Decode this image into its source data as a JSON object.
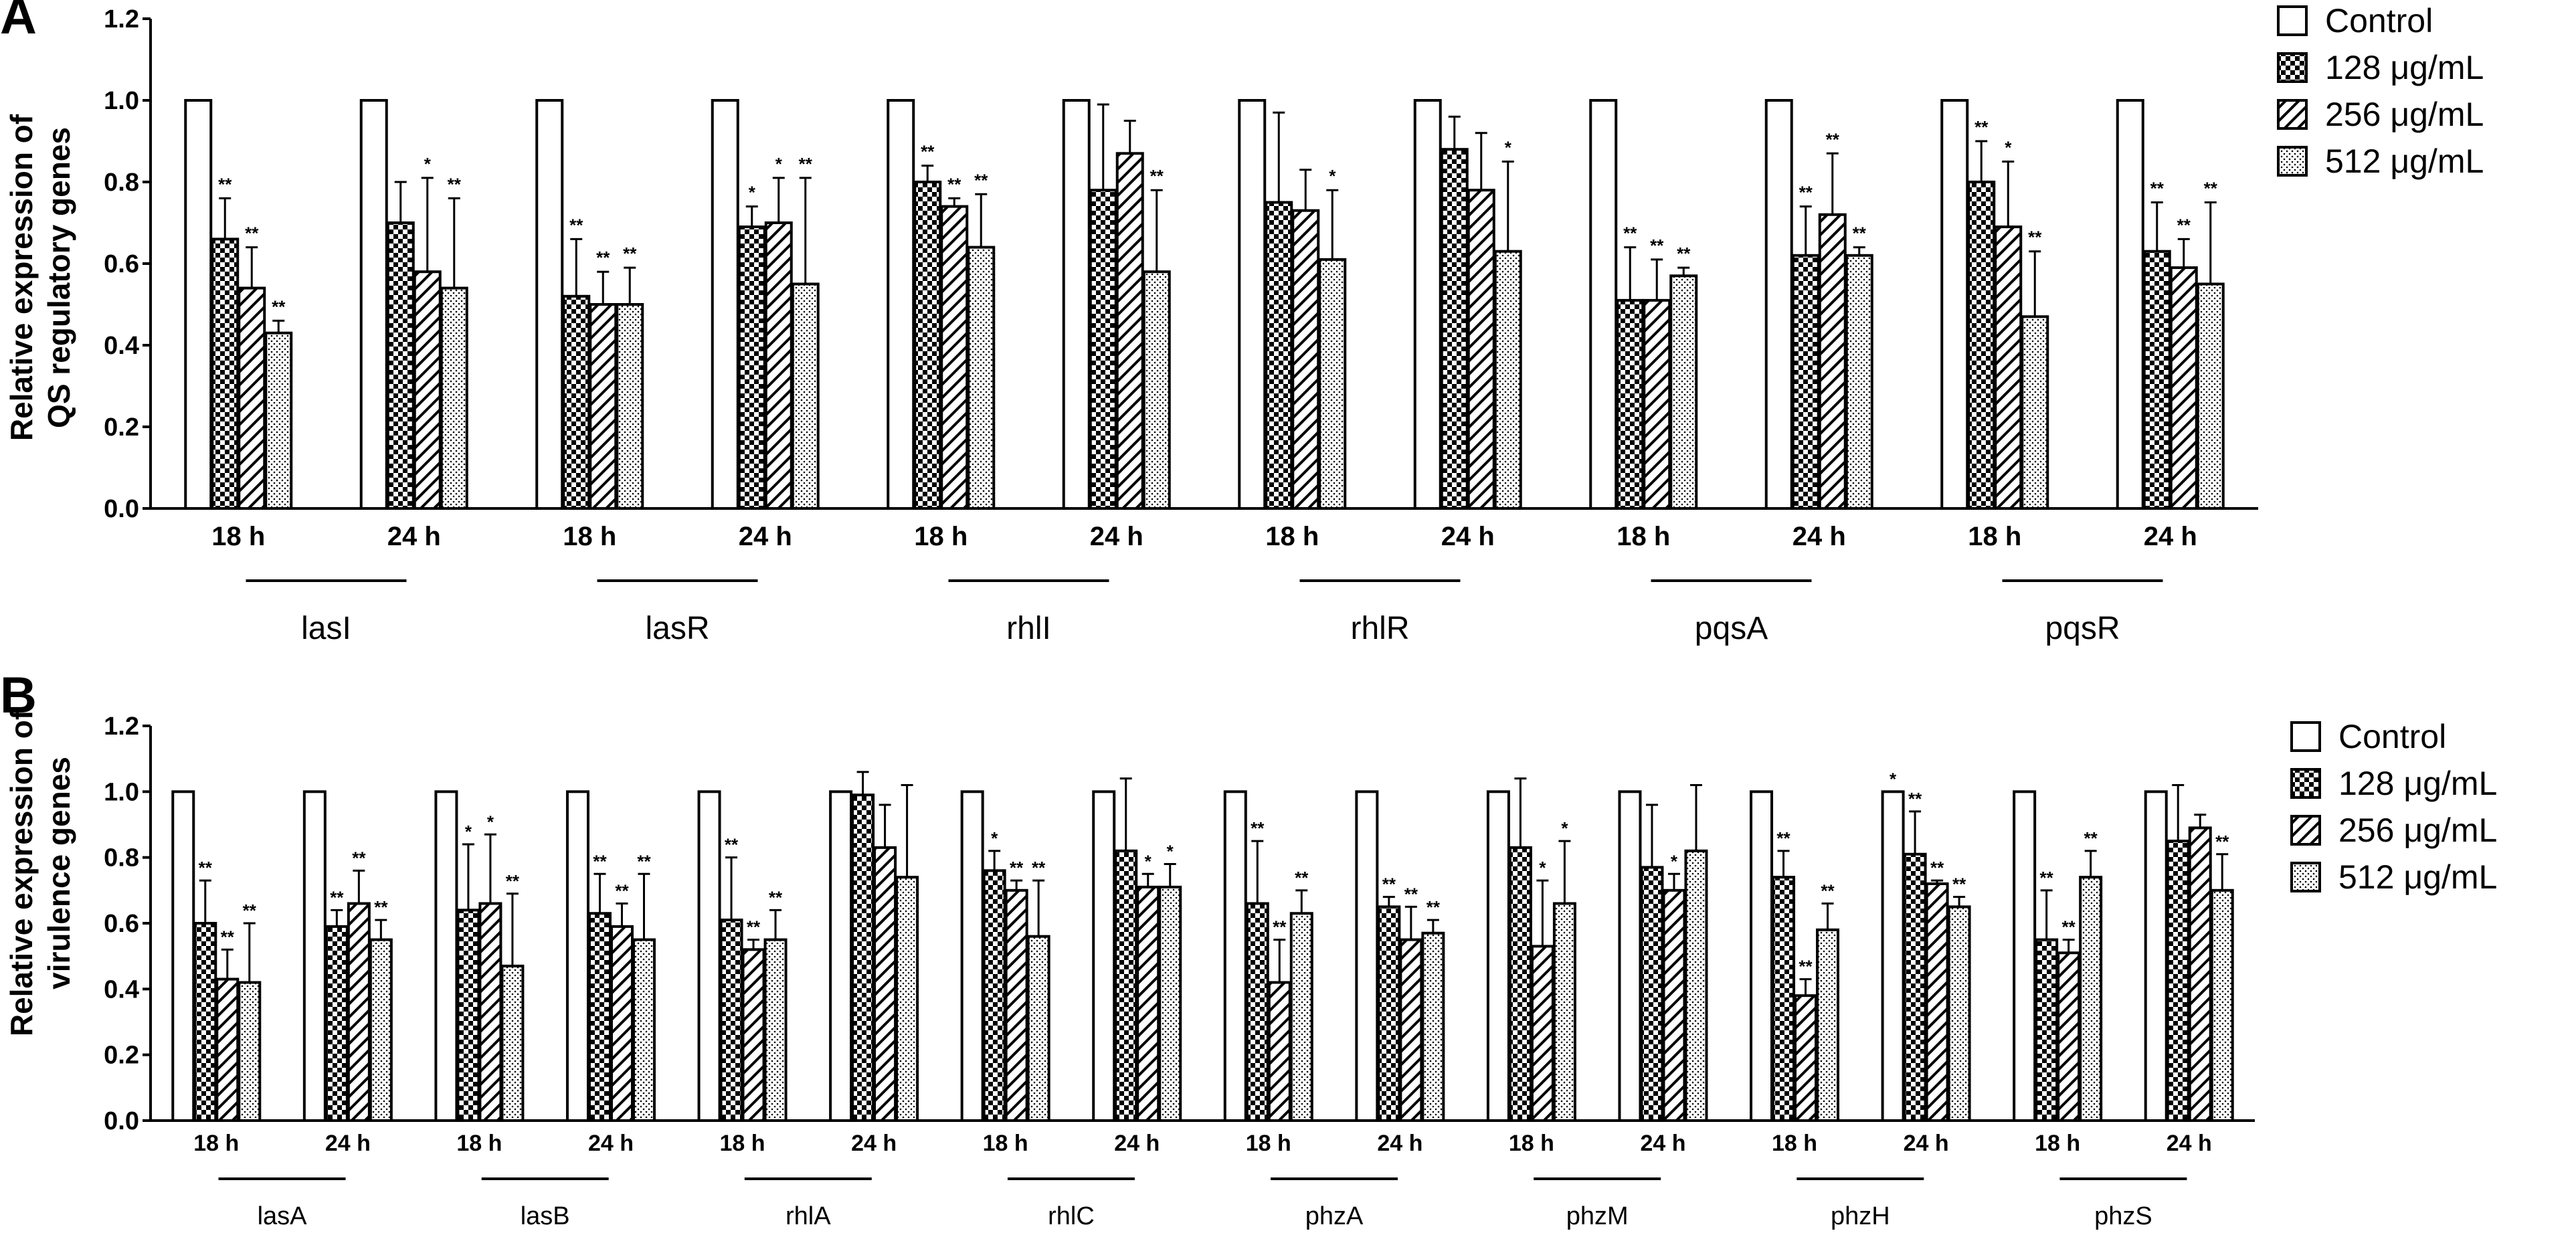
{
  "chart_data": [
    {
      "panel": "A",
      "type": "bar",
      "ylabel": "Relative expression of QS regulatory genes",
      "ylabel_lines": [
        "Relative expression of",
        "QS regulatory genes"
      ],
      "ylim": [
        0,
        1.2
      ],
      "yticks": [
        "0.0",
        "0.2",
        "0.4",
        "0.6",
        "0.8",
        "1.0",
        "1.2"
      ],
      "legend": [
        "Control",
        "128 μg/mL",
        "256 μg/mL",
        "512 μg/mL"
      ],
      "genes": [
        "lasI",
        "lasR",
        "rhlI",
        "rhlR",
        "pqsA",
        "pqsR"
      ],
      "timepoints": [
        "18 h",
        "24 h"
      ],
      "groups": [
        {
          "gene": "lasI",
          "time": "18 h",
          "values": [
            1.0,
            0.66,
            0.54,
            0.43
          ],
          "errors": [
            0,
            0.1,
            0.1,
            0.03
          ],
          "sig": [
            "",
            "**",
            "**",
            "**"
          ]
        },
        {
          "gene": "lasI",
          "time": "24 h",
          "values": [
            1.0,
            0.7,
            0.58,
            0.54
          ],
          "errors": [
            0,
            0.1,
            0.23,
            0.22
          ],
          "sig": [
            "",
            "",
            "*",
            "**"
          ]
        },
        {
          "gene": "lasR",
          "time": "18 h",
          "values": [
            1.0,
            0.52,
            0.5,
            0.5
          ],
          "errors": [
            0,
            0.14,
            0.08,
            0.09
          ],
          "sig": [
            "",
            "**",
            "**",
            "**"
          ]
        },
        {
          "gene": "lasR",
          "time": "24 h",
          "values": [
            1.0,
            0.69,
            0.7,
            0.55
          ],
          "errors": [
            0,
            0.05,
            0.11,
            0.26
          ],
          "sig": [
            "",
            "*",
            "*",
            "**"
          ]
        },
        {
          "gene": "rhlI",
          "time": "18 h",
          "values": [
            1.0,
            0.8,
            0.74,
            0.64
          ],
          "errors": [
            0,
            0.04,
            0.02,
            0.13
          ],
          "sig": [
            "",
            "**",
            "**",
            "**"
          ]
        },
        {
          "gene": "rhlI",
          "time": "24 h",
          "values": [
            1.0,
            0.78,
            0.87,
            0.58
          ],
          "errors": [
            0,
            0.21,
            0.08,
            0.2
          ],
          "sig": [
            "",
            "",
            "",
            "**"
          ]
        },
        {
          "gene": "rhlR",
          "time": "18 h",
          "values": [
            1.0,
            0.75,
            0.73,
            0.61
          ],
          "errors": [
            0,
            0.22,
            0.1,
            0.17
          ],
          "sig": [
            "",
            "",
            "",
            "*"
          ]
        },
        {
          "gene": "rhlR",
          "time": "24 h",
          "values": [
            1.0,
            0.88,
            0.78,
            0.63
          ],
          "errors": [
            0,
            0.08,
            0.14,
            0.22
          ],
          "sig": [
            "",
            "",
            "",
            "*"
          ]
        },
        {
          "gene": "pqsA",
          "time": "18 h",
          "values": [
            1.0,
            0.51,
            0.51,
            0.57
          ],
          "errors": [
            0,
            0.13,
            0.1,
            0.02
          ],
          "sig": [
            "",
            "**",
            "**",
            "**"
          ]
        },
        {
          "gene": "pqsA",
          "time": "24 h",
          "values": [
            1.0,
            0.62,
            0.72,
            0.62
          ],
          "errors": [
            0,
            0.12,
            0.15,
            0.02
          ],
          "sig": [
            "",
            "**",
            "**",
            "**"
          ]
        },
        {
          "gene": "pqsR",
          "time": "18 h",
          "values": [
            1.0,
            0.8,
            0.69,
            0.47
          ],
          "errors": [
            0,
            0.1,
            0.16,
            0.16
          ],
          "sig": [
            "",
            "**",
            "*",
            "**"
          ]
        },
        {
          "gene": "pqsR",
          "time": "24 h",
          "values": [
            1.0,
            0.63,
            0.59,
            0.55
          ],
          "errors": [
            0,
            0.12,
            0.07,
            0.2
          ],
          "sig": [
            "",
            "**",
            "**",
            "**"
          ]
        }
      ]
    },
    {
      "panel": "B",
      "type": "bar",
      "ylabel": "Relative expression of virulence genes",
      "ylabel_lines": [
        "Relative expression of",
        "virulence genes"
      ],
      "ylim": [
        0,
        1.2
      ],
      "yticks": [
        "0.0",
        "0.2",
        "0.4",
        "0.6",
        "0.8",
        "1.0",
        "1.2"
      ],
      "legend": [
        "Control",
        "128 μg/mL",
        "256 μg/mL",
        "512 μg/mL"
      ],
      "genes": [
        "lasA",
        "lasB",
        "rhlA",
        "rhlC",
        "phzA",
        "phzM",
        "phzH",
        "phzS"
      ],
      "timepoints": [
        "18 h",
        "24 h"
      ],
      "groups": [
        {
          "gene": "lasA",
          "time": "18 h",
          "values": [
            1.0,
            0.6,
            0.43,
            0.42
          ],
          "errors": [
            0,
            0.13,
            0.09,
            0.18
          ],
          "sig": [
            "",
            "**",
            "**",
            "**"
          ]
        },
        {
          "gene": "lasA",
          "time": "24 h",
          "values": [
            1.0,
            0.59,
            0.66,
            0.55
          ],
          "errors": [
            0,
            0.05,
            0.1,
            0.06
          ],
          "sig": [
            "",
            "**",
            "**",
            "**"
          ]
        },
        {
          "gene": "lasB",
          "time": "18 h",
          "values": [
            1.0,
            0.64,
            0.66,
            0.47
          ],
          "errors": [
            0,
            0.2,
            0.21,
            0.22
          ],
          "sig": [
            "",
            "*",
            "*",
            "**"
          ]
        },
        {
          "gene": "lasB",
          "time": "24 h",
          "values": [
            1.0,
            0.63,
            0.59,
            0.55
          ],
          "errors": [
            0,
            0.12,
            0.07,
            0.2
          ],
          "sig": [
            "",
            "**",
            "**",
            "**"
          ]
        },
        {
          "gene": "rhlA",
          "time": "18 h",
          "values": [
            1.0,
            0.61,
            0.52,
            0.55
          ],
          "errors": [
            0,
            0.19,
            0.03,
            0.09
          ],
          "sig": [
            "",
            "**",
            "**",
            "**"
          ]
        },
        {
          "gene": "rhlA",
          "time": "24 h",
          "values": [
            1.0,
            0.99,
            0.83,
            0.74
          ],
          "errors": [
            0,
            0.07,
            0.13,
            0.28
          ],
          "sig": [
            "",
            "",
            "",
            ""
          ]
        },
        {
          "gene": "rhlC",
          "time": "18 h",
          "values": [
            1.0,
            0.76,
            0.7,
            0.56
          ],
          "errors": [
            0,
            0.06,
            0.03,
            0.17
          ],
          "sig": [
            "",
            "*",
            "**",
            "**"
          ]
        },
        {
          "gene": "rhlC",
          "time": "24 h",
          "values": [
            1.0,
            0.82,
            0.71,
            0.71
          ],
          "errors": [
            0,
            0.22,
            0.04,
            0.07
          ],
          "sig": [
            "",
            "",
            "*",
            "*"
          ]
        },
        {
          "gene": "phzA",
          "time": "18 h",
          "values": [
            1.0,
            0.66,
            0.42,
            0.63
          ],
          "errors": [
            0,
            0.19,
            0.13,
            0.07
          ],
          "sig": [
            "",
            "**",
            "**",
            "**"
          ]
        },
        {
          "gene": "phzA",
          "time": "24 h",
          "values": [
            1.0,
            0.65,
            0.55,
            0.57
          ],
          "errors": [
            0,
            0.03,
            0.1,
            0.04
          ],
          "sig": [
            "",
            "**",
            "**",
            "**"
          ]
        },
        {
          "gene": "phzM",
          "time": "18 h",
          "values": [
            1.0,
            0.83,
            0.53,
            0.66
          ],
          "errors": [
            0,
            0.21,
            0.2,
            0.19
          ],
          "sig": [
            "",
            "",
            "*",
            "*"
          ]
        },
        {
          "gene": "phzM",
          "time": "24 h",
          "values": [
            1.0,
            0.77,
            0.7,
            0.82
          ],
          "errors": [
            0,
            0.19,
            0.05,
            0.2
          ],
          "sig": [
            "",
            "",
            "*",
            ""
          ]
        },
        {
          "gene": "phzH",
          "time": "18 h",
          "values": [
            1.0,
            0.74,
            0.38,
            0.58
          ],
          "errors": [
            0,
            0.08,
            0.05,
            0.08
          ],
          "sig": [
            "",
            "**",
            "**",
            "**"
          ]
        },
        {
          "gene": "phzH",
          "time": "24 h",
          "values": [
            1.0,
            0.81,
            0.72,
            0.65
          ],
          "errors": [
            0,
            0.13,
            0.01,
            0.03
          ],
          "sig": [
            "*",
            "**",
            "**",
            "**"
          ]
        },
        {
          "gene": "phzS",
          "time": "18 h",
          "values": [
            1.0,
            0.55,
            0.51,
            0.74
          ],
          "errors": [
            0,
            0.15,
            0.04,
            0.08
          ],
          "sig": [
            "",
            "**",
            "**",
            "**"
          ]
        },
        {
          "gene": "phzS",
          "time": "24 h",
          "values": [
            1.0,
            0.85,
            0.89,
            0.7
          ],
          "errors": [
            0,
            0.17,
            0.04,
            0.11
          ],
          "sig": [
            "",
            "",
            "",
            "**"
          ]
        }
      ]
    }
  ],
  "colors": {
    "bar_edge": "#000000",
    "background": "#ffffff"
  }
}
